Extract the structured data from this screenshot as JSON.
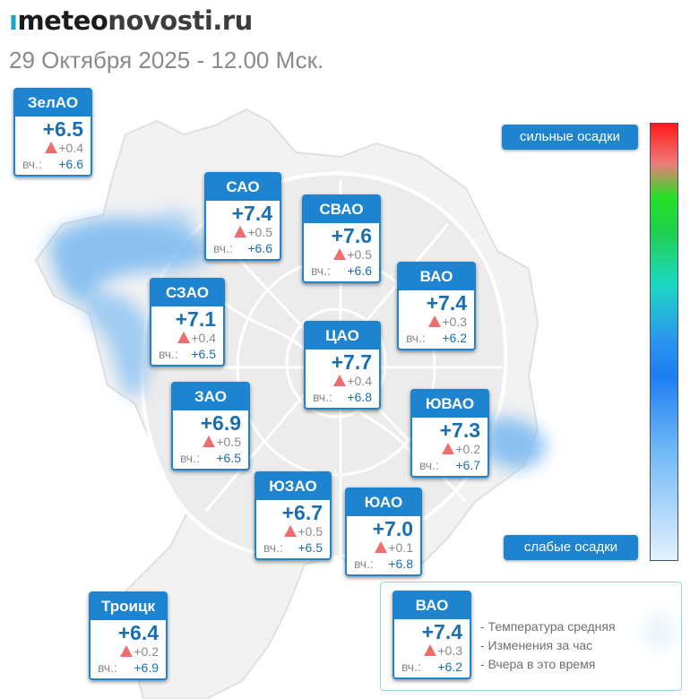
{
  "site": {
    "logo_mark": "ı",
    "logo_part1": "meteo",
    "logo_part2": "novosti.ru"
  },
  "datetime": "29 Октября 2025 - 12.00 Мск.",
  "yesterday_label": "вч.:",
  "districts": [
    {
      "id": "zelao",
      "name": "ЗелАО",
      "temp": "+6.5",
      "change": "+0.4",
      "yesterday": "+6.6"
    },
    {
      "id": "sao",
      "name": "САО",
      "temp": "+7.4",
      "change": "+0.5",
      "yesterday": "+6.6"
    },
    {
      "id": "svao",
      "name": "СВАО",
      "temp": "+7.6",
      "change": "+0.5",
      "yesterday": "+6.6"
    },
    {
      "id": "vao",
      "name": "ВАО",
      "temp": "+7.4",
      "change": "+0.3",
      "yesterday": "+6.2"
    },
    {
      "id": "szao",
      "name": "СЗАО",
      "temp": "+7.1",
      "change": "+0.4",
      "yesterday": "+6.5"
    },
    {
      "id": "cao",
      "name": "ЦАО",
      "temp": "+7.7",
      "change": "+0.4",
      "yesterday": "+6.8"
    },
    {
      "id": "zao",
      "name": "ЗАО",
      "temp": "+6.9",
      "change": "+0.5",
      "yesterday": "+6.5"
    },
    {
      "id": "yuvao",
      "name": "ЮВАО",
      "temp": "+7.3",
      "change": "+0.2",
      "yesterday": "+6.7"
    },
    {
      "id": "yuzao",
      "name": "ЮЗАО",
      "temp": "+6.7",
      "change": "+0.5",
      "yesterday": "+6.5"
    },
    {
      "id": "yuao",
      "name": "ЮАО",
      "temp": "+7.0",
      "change": "+0.1",
      "yesterday": "+6.8"
    },
    {
      "id": "troitsk",
      "name": "Троицк",
      "temp": "+6.4",
      "change": "+0.2",
      "yesterday": "+6.9"
    }
  ],
  "precip_scale": {
    "top_label": "сильные осадки",
    "bottom_label": "слабые осадки",
    "colors": [
      "#ff1a1a",
      "#25e025",
      "#1dd8c4",
      "#1e7ef2",
      "#e4f1ff"
    ]
  },
  "legend": {
    "sample": {
      "name": "ВАО",
      "temp": "+7.4",
      "change": "+0.3",
      "yesterday": "+6.2"
    },
    "lines": [
      "- Температура средняя",
      "- Изменения за час",
      "- Вчера в это время"
    ]
  },
  "colors": {
    "accent": "#1f84d0",
    "temp_text": "#1a6fb2",
    "change_arrow": "#ee6d6d",
    "precip_blue": "#7ab8f0"
  }
}
